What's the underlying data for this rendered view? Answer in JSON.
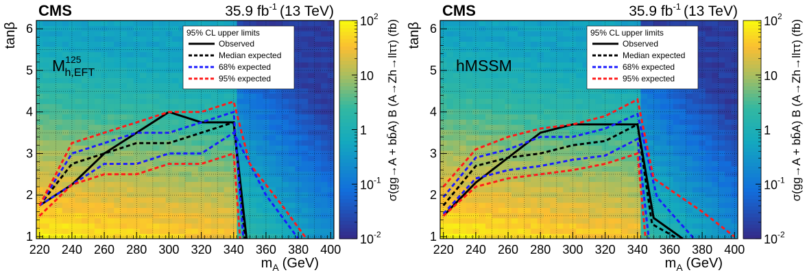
{
  "palette": {
    "map_low": "#352a87",
    "map_mid": "#33b8a1",
    "map_high": "#f9fb0e",
    "observed": "#000000",
    "median": "#000000",
    "band68": "#1a1aff",
    "band95": "#ff1a1a"
  },
  "chart_data": [
    {
      "type": "heatmap",
      "experiment": "CMS",
      "luminosity_base": "35.9 fb",
      "luminosity_exp": "-1",
      "energy": "(13 TeV)",
      "scenario_main": "M",
      "scenario_sup": "125",
      "scenario_sub": "h,EFT",
      "xlabel_main": "m",
      "xlabel_sub": "A",
      "xlabel_unit": "(GeV)",
      "ylabel": "tanβ",
      "zlabel": "σ(gg→A + bb̄A) B (A→Zh→llττ) (fb)",
      "xlim": [
        218,
        402
      ],
      "ylim": [
        0.95,
        6.2
      ],
      "zlim": [
        0.01,
        100
      ],
      "zscale": "log",
      "grid": true,
      "x_ticks": [
        220,
        240,
        260,
        280,
        300,
        320,
        340,
        360,
        380,
        400
      ],
      "y_ticks": [
        1,
        2,
        3,
        4,
        5,
        6
      ],
      "z_ticks": [
        {
          "value": 0.01,
          "base": "10",
          "exp": "-2"
        },
        {
          "value": 0.1,
          "base": "10",
          "exp": "-1"
        },
        {
          "value": 1,
          "base": "1",
          "exp": ""
        },
        {
          "value": 10,
          "base": "10",
          "exp": ""
        },
        {
          "value": 100,
          "base": "10",
          "exp": "2"
        }
      ],
      "legend_title": "95% CL upper limits",
      "legend_position": "top-right",
      "series": [
        {
          "name": "Observed",
          "style": "solid",
          "color": "#000000",
          "x": [
            220,
            240,
            260,
            280,
            300,
            320,
            340,
            348
          ],
          "y": [
            1.75,
            2.25,
            3.0,
            3.5,
            4.0,
            3.75,
            3.75,
            0.95
          ]
        },
        {
          "name": "Median expected",
          "style": "dashed",
          "color": "#000000",
          "x": [
            220,
            240,
            260,
            280,
            300,
            320,
            340,
            347
          ],
          "y": [
            1.75,
            2.75,
            3.0,
            3.25,
            3.25,
            3.5,
            3.75,
            0.95
          ]
        },
        {
          "name": "68% expected",
          "style": "dashed",
          "color": "#1a1aff",
          "x": [
            220,
            240,
            260,
            280,
            300,
            320,
            340,
            346
          ],
          "y": [
            1.75,
            3.0,
            3.25,
            3.5,
            3.5,
            3.75,
            4.0,
            0.95
          ]
        },
        {
          "name": "",
          "style": "dashed",
          "color": "#1a1aff",
          "x": [
            220,
            240,
            260,
            280,
            300,
            320,
            340,
            360,
            380
          ],
          "y": [
            1.75,
            2.25,
            2.75,
            2.75,
            3.0,
            3.0,
            3.5,
            2.0,
            0.95
          ]
        },
        {
          "name": "95% expected",
          "style": "dashed",
          "color": "#ff1a1a",
          "x": [
            220,
            240,
            260,
            280,
            300,
            320,
            340,
            350,
            370,
            385
          ],
          "y": [
            1.75,
            3.25,
            3.5,
            3.75,
            4.0,
            4.0,
            4.25,
            2.75,
            1.75,
            0.95
          ]
        },
        {
          "name": "",
          "style": "dashed",
          "color": "#ff1a1a",
          "x": [
            220,
            240,
            260,
            280,
            300,
            320,
            340,
            344
          ],
          "y": [
            1.5,
            2.25,
            2.5,
            2.5,
            2.75,
            2.75,
            3.0,
            0.95
          ]
        }
      ]
    },
    {
      "type": "heatmap",
      "experiment": "CMS",
      "luminosity_base": "35.9 fb",
      "luminosity_exp": "-1",
      "energy": "(13 TeV)",
      "scenario_main": "hMSSM",
      "scenario_sup": "",
      "scenario_sub": "",
      "xlabel_main": "m",
      "xlabel_sub": "A",
      "xlabel_unit": "(GeV)",
      "ylabel": "tanβ",
      "zlabel": "σ(gg→A + bb̄A) B (A→Zh→llττ) (fb)",
      "xlim": [
        218,
        402
      ],
      "ylim": [
        0.95,
        6.2
      ],
      "zlim": [
        0.01,
        100
      ],
      "zscale": "log",
      "grid": true,
      "x_ticks": [
        220,
        240,
        260,
        280,
        300,
        320,
        340,
        360,
        380,
        400
      ],
      "y_ticks": [
        1,
        2,
        3,
        4,
        5,
        6
      ],
      "z_ticks": [
        {
          "value": 0.01,
          "base": "10",
          "exp": "-2"
        },
        {
          "value": 0.1,
          "base": "10",
          "exp": "-1"
        },
        {
          "value": 1,
          "base": "1",
          "exp": ""
        },
        {
          "value": 10,
          "base": "10",
          "exp": ""
        },
        {
          "value": 100,
          "base": "10",
          "exp": "2"
        }
      ],
      "legend_title": "95% CL upper limits",
      "legend_position": "top-right",
      "series": [
        {
          "name": "Observed",
          "style": "solid",
          "color": "#000000",
          "x": [
            220,
            240,
            260,
            280,
            300,
            320,
            340,
            350,
            368
          ],
          "y": [
            1.5,
            2.3,
            2.9,
            3.5,
            3.7,
            3.7,
            3.7,
            1.45,
            0.95
          ]
        },
        {
          "name": "Median expected",
          "style": "dashed",
          "color": "#000000",
          "x": [
            220,
            240,
            260,
            280,
            300,
            320,
            340,
            349,
            365
          ],
          "y": [
            1.75,
            2.7,
            2.9,
            3.0,
            3.2,
            3.3,
            3.7,
            1.3,
            0.95
          ]
        },
        {
          "name": "68% expected",
          "style": "dashed",
          "color": "#1a1aff",
          "x": [
            220,
            240,
            260,
            280,
            300,
            320,
            340,
            352,
            375
          ],
          "y": [
            1.95,
            2.9,
            3.1,
            3.4,
            3.4,
            3.6,
            3.95,
            1.95,
            0.95
          ]
        },
        {
          "name": "",
          "style": "dashed",
          "color": "#1a1aff",
          "x": [
            220,
            240,
            260,
            280,
            300,
            320,
            340,
            347
          ],
          "y": [
            1.55,
            2.4,
            2.6,
            2.7,
            2.85,
            2.95,
            3.35,
            0.95
          ]
        },
        {
          "name": "95% expected",
          "style": "dashed",
          "color": "#ff1a1a",
          "x": [
            220,
            240,
            260,
            280,
            300,
            320,
            340,
            350,
            380,
            400
          ],
          "y": [
            2.2,
            3.1,
            3.4,
            3.6,
            3.7,
            3.9,
            4.3,
            2.4,
            1.6,
            1.0
          ]
        },
        {
          "name": "",
          "style": "dashed",
          "color": "#ff1a1a",
          "x": [
            220,
            240,
            260,
            280,
            300,
            320,
            340,
            345
          ],
          "y": [
            1.5,
            2.2,
            2.4,
            2.5,
            2.6,
            2.75,
            3.0,
            0.95
          ]
        }
      ]
    }
  ]
}
